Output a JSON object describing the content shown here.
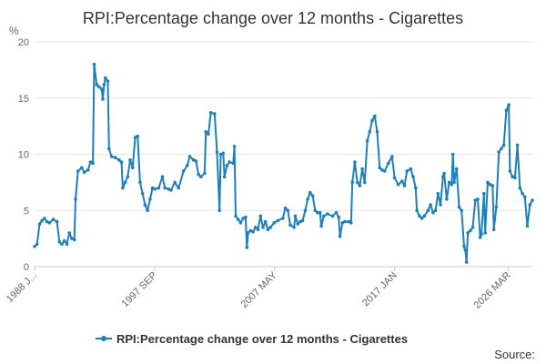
{
  "chart_data": {
    "type": "line",
    "title": "RPI:Percentage change over 12 months - Cigarettes",
    "ylabel": "%",
    "xlabel": "",
    "ylim": [
      0,
      20
    ],
    "yticks": [
      0,
      5,
      10,
      15,
      20
    ],
    "xticks": [
      "1988 J...",
      "1997 SEP",
      "2007 MAY",
      "2017 JAN",
      "2026 MAR"
    ],
    "grid": true,
    "legend_position": "bottom",
    "series": [
      {
        "name": "RPI:Percentage change over 12 months - Cigarettes",
        "color": "#1f7fb8",
        "points": [
          [
            1988.0,
            1.8
          ],
          [
            1988.2,
            2.0
          ],
          [
            1988.4,
            3.8
          ],
          [
            1988.6,
            4.1
          ],
          [
            1988.8,
            4.3
          ],
          [
            1989.0,
            4.0
          ],
          [
            1989.2,
            3.9
          ],
          [
            1989.5,
            4.2
          ],
          [
            1989.8,
            4.0
          ],
          [
            1990.0,
            2.2
          ],
          [
            1990.2,
            2.0
          ],
          [
            1990.4,
            2.3
          ],
          [
            1990.6,
            2.0
          ],
          [
            1990.8,
            3.0
          ],
          [
            1991.0,
            2.5
          ],
          [
            1991.2,
            2.4
          ],
          [
            1991.3,
            6.0
          ],
          [
            1991.5,
            8.5
          ],
          [
            1991.8,
            8.8
          ],
          [
            1992.0,
            8.4
          ],
          [
            1992.3,
            8.6
          ],
          [
            1992.5,
            9.3
          ],
          [
            1992.7,
            9.2
          ],
          [
            1992.8,
            18.0
          ],
          [
            1993.0,
            16.2
          ],
          [
            1993.2,
            16.0
          ],
          [
            1993.4,
            15.8
          ],
          [
            1993.5,
            14.9
          ],
          [
            1993.6,
            16.2
          ],
          [
            1993.7,
            16.8
          ],
          [
            1993.9,
            16.5
          ],
          [
            1994.0,
            10.5
          ],
          [
            1994.2,
            9.8
          ],
          [
            1994.5,
            9.7
          ],
          [
            1994.8,
            9.5
          ],
          [
            1995.0,
            9.3
          ],
          [
            1995.1,
            7.0
          ],
          [
            1995.3,
            7.5
          ],
          [
            1995.5,
            8.0
          ],
          [
            1995.7,
            9.5
          ],
          [
            1995.9,
            8.8
          ],
          [
            1996.1,
            11.5
          ],
          [
            1996.3,
            11.6
          ],
          [
            1996.5,
            7.5
          ],
          [
            1996.7,
            6.5
          ],
          [
            1996.9,
            5.5
          ],
          [
            1997.1,
            5.0
          ],
          [
            1997.3,
            6.0
          ],
          [
            1997.5,
            7.0
          ],
          [
            1997.7,
            6.9
          ],
          [
            1998.0,
            7.0
          ],
          [
            1998.3,
            8.0
          ],
          [
            1998.5,
            7.0
          ],
          [
            1998.8,
            6.9
          ],
          [
            1999.0,
            6.8
          ],
          [
            1999.3,
            7.5
          ],
          [
            1999.6,
            7.0
          ],
          [
            2000.0,
            8.5
          ],
          [
            2000.3,
            9.0
          ],
          [
            2000.5,
            9.8
          ],
          [
            2000.8,
            9.5
          ],
          [
            2001.0,
            9.4
          ],
          [
            2001.2,
            8.2
          ],
          [
            2001.4,
            8.0
          ],
          [
            2001.7,
            8.3
          ],
          [
            2001.8,
            12.0
          ],
          [
            2002.0,
            11.8
          ],
          [
            2002.2,
            13.7
          ],
          [
            2002.5,
            13.6
          ],
          [
            2002.7,
            10.2
          ],
          [
            2002.9,
            5.0
          ],
          [
            2003.0,
            10.0
          ],
          [
            2003.2,
            10.1
          ],
          [
            2003.3,
            8.0
          ],
          [
            2003.5,
            9.0
          ],
          [
            2003.7,
            9.3
          ],
          [
            2004.0,
            9.2
          ],
          [
            2004.1,
            10.7
          ],
          [
            2004.2,
            4.5
          ],
          [
            2004.4,
            4.2
          ],
          [
            2004.6,
            3.9
          ],
          [
            2004.8,
            4.3
          ],
          [
            2005.0,
            4.4
          ],
          [
            2005.1,
            1.7
          ],
          [
            2005.2,
            3.0
          ],
          [
            2005.4,
            3.2
          ],
          [
            2005.6,
            3.1
          ],
          [
            2005.8,
            3.5
          ],
          [
            2006.0,
            3.3
          ],
          [
            2006.2,
            4.5
          ],
          [
            2006.4,
            3.5
          ],
          [
            2006.6,
            4.0
          ],
          [
            2006.8,
            3.3
          ],
          [
            2007.0,
            3.5
          ],
          [
            2007.3,
            3.9
          ],
          [
            2007.6,
            4.1
          ],
          [
            2008.0,
            4.3
          ],
          [
            2008.2,
            5.2
          ],
          [
            2008.4,
            5.0
          ],
          [
            2008.6,
            3.7
          ],
          [
            2008.9,
            3.5
          ],
          [
            2009.0,
            4.5
          ],
          [
            2009.2,
            3.8
          ],
          [
            2009.4,
            4.0
          ],
          [
            2009.6,
            4.1
          ],
          [
            2009.8,
            5.0
          ],
          [
            2010.0,
            6.0
          ],
          [
            2010.2,
            6.6
          ],
          [
            2010.4,
            6.3
          ],
          [
            2010.6,
            5.0
          ],
          [
            2010.8,
            4.8
          ],
          [
            2011.0,
            4.8
          ],
          [
            2011.1,
            3.6
          ],
          [
            2011.3,
            4.5
          ],
          [
            2011.6,
            4.7
          ],
          [
            2012.0,
            4.5
          ],
          [
            2012.3,
            4.8
          ],
          [
            2012.5,
            4.4
          ],
          [
            2012.6,
            2.7
          ],
          [
            2012.8,
            3.9
          ],
          [
            2013.0,
            4.0
          ],
          [
            2013.3,
            4.0
          ],
          [
            2013.5,
            3.9
          ],
          [
            2013.6,
            7.5
          ],
          [
            2013.8,
            9.3
          ],
          [
            2014.0,
            7.5
          ],
          [
            2014.2,
            7.2
          ],
          [
            2014.4,
            8.7
          ],
          [
            2014.6,
            7.5
          ],
          [
            2014.8,
            11.2
          ],
          [
            2015.0,
            12.0
          ],
          [
            2015.2,
            13.0
          ],
          [
            2015.4,
            13.4
          ],
          [
            2015.6,
            12.0
          ],
          [
            2015.8,
            8.8
          ],
          [
            2016.0,
            8.6
          ],
          [
            2016.2,
            8.5
          ],
          [
            2016.5,
            9.2
          ],
          [
            2016.8,
            9.8
          ],
          [
            2017.0,
            7.9
          ],
          [
            2017.3,
            7.3
          ],
          [
            2017.6,
            7.6
          ],
          [
            2017.8,
            7.2
          ],
          [
            2018.0,
            8.5
          ],
          [
            2018.3,
            8.7
          ],
          [
            2018.5,
            8.0
          ],
          [
            2018.7,
            7.0
          ],
          [
            2018.8,
            5.0
          ],
          [
            2019.0,
            4.5
          ],
          [
            2019.2,
            4.3
          ],
          [
            2019.4,
            4.5
          ],
          [
            2019.7,
            5.0
          ],
          [
            2019.9,
            5.5
          ],
          [
            2020.1,
            4.8
          ],
          [
            2020.3,
            5.0
          ],
          [
            2020.5,
            6.5
          ],
          [
            2020.7,
            5.5
          ],
          [
            2020.9,
            8.0
          ],
          [
            2021.0,
            8.3
          ],
          [
            2021.2,
            6.0
          ],
          [
            2021.4,
            7.5
          ],
          [
            2021.6,
            7.3
          ],
          [
            2021.7,
            10.0
          ],
          [
            2021.8,
            7.5
          ],
          [
            2022.0,
            8.7
          ],
          [
            2022.2,
            5.3
          ],
          [
            2022.4,
            5.0
          ],
          [
            2022.6,
            1.8
          ],
          [
            2022.7,
            1.5
          ],
          [
            2022.8,
            0.4
          ],
          [
            2022.9,
            3.0
          ],
          [
            2023.1,
            3.2
          ],
          [
            2023.3,
            3.5
          ],
          [
            2023.5,
            5.9
          ],
          [
            2023.7,
            6.0
          ],
          [
            2023.9,
            2.6
          ],
          [
            2024.0,
            2.9
          ],
          [
            2024.2,
            6.5
          ],
          [
            2024.3,
            3.0
          ],
          [
            2024.5,
            7.5
          ],
          [
            2024.7,
            7.3
          ],
          [
            2024.9,
            7.2
          ],
          [
            2025.0,
            3.3
          ],
          [
            2025.2,
            5.3
          ],
          [
            2025.4,
            10.2
          ],
          [
            2025.6,
            10.5
          ],
          [
            2025.8,
            10.8
          ],
          [
            2026.0,
            13.9
          ],
          [
            2026.2,
            14.4
          ],
          [
            2026.3,
            8.5
          ],
          [
            2026.5,
            8.0
          ],
          [
            2026.7,
            7.9
          ],
          [
            2026.9,
            10.8
          ],
          [
            2027.1,
            7.0
          ],
          [
            2027.3,
            6.5
          ],
          [
            2027.5,
            6.2
          ],
          [
            2027.7,
            3.6
          ],
          [
            2027.9,
            5.5
          ],
          [
            2028.1,
            5.9
          ]
        ]
      }
    ],
    "source_label": "Source:"
  }
}
